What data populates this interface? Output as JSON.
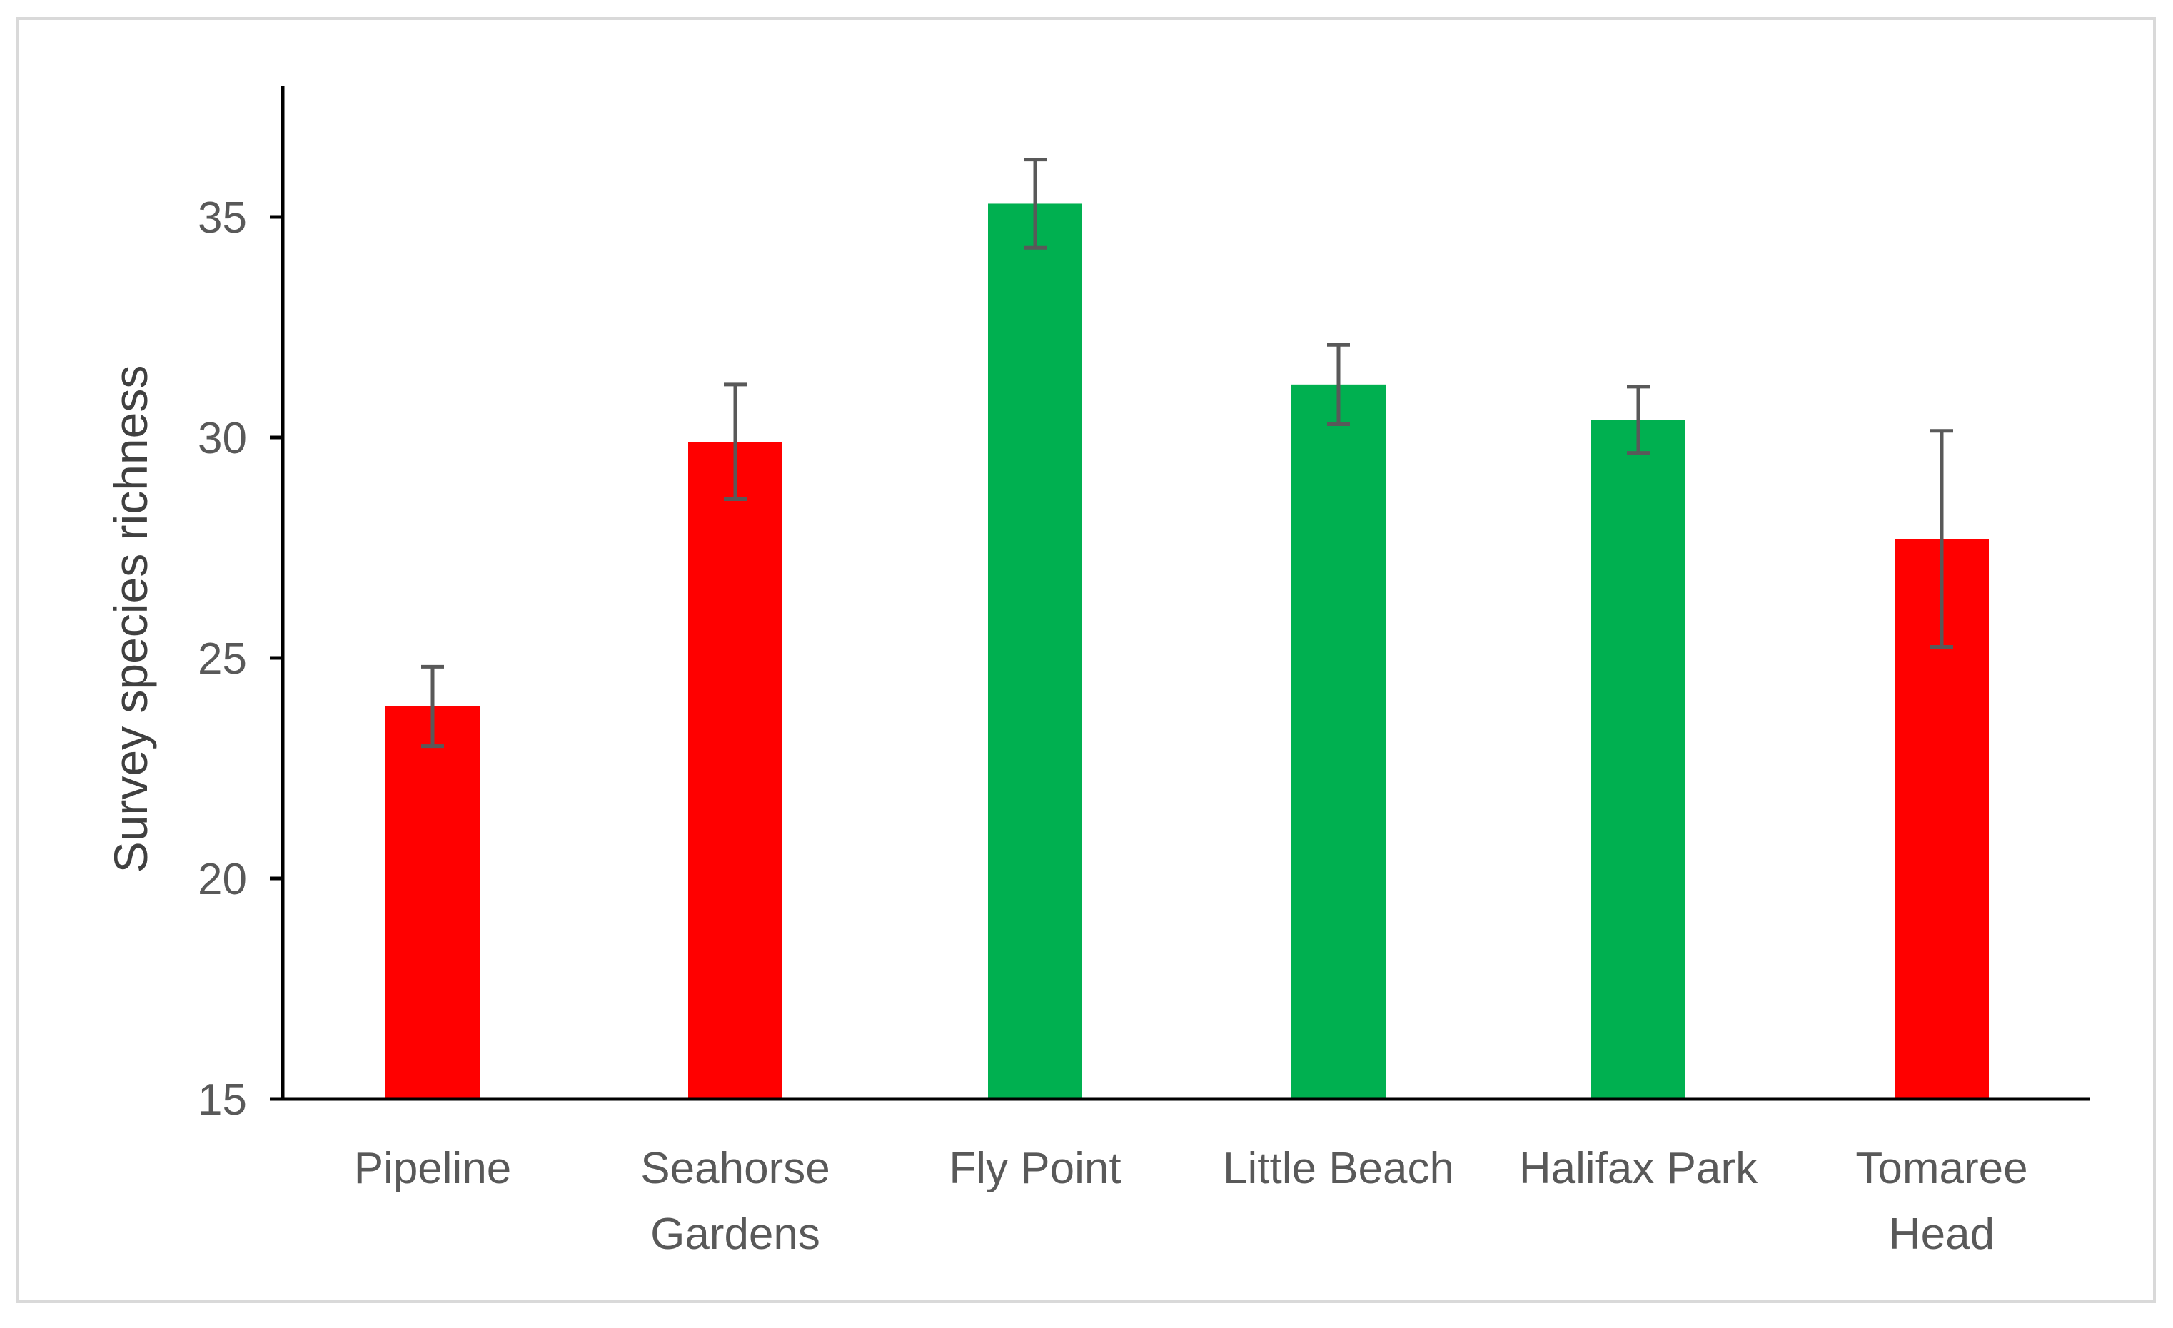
{
  "chart_data": {
    "type": "bar",
    "title": "",
    "xlabel": "",
    "ylabel": "Survey species richness",
    "ylim": [
      15,
      38
    ],
    "yticks": [
      15,
      20,
      25,
      30,
      35
    ],
    "grid": false,
    "categories": [
      [
        "Pipeline"
      ],
      [
        "Seahorse",
        "Gardens"
      ],
      [
        "Fly Point"
      ],
      [
        "Little Beach"
      ],
      [
        "Halifax Park"
      ],
      [
        "Tomaree",
        "Head"
      ]
    ],
    "values": [
      23.9,
      29.9,
      35.3,
      31.2,
      30.4,
      27.7
    ],
    "error": [
      0.9,
      1.3,
      1.0,
      0.9,
      0.75,
      2.45
    ],
    "colors": [
      "#ff0000",
      "#ff0000",
      "#00b050",
      "#00b050",
      "#00b050",
      "#ff0000"
    ],
    "error_color": "#595959"
  }
}
